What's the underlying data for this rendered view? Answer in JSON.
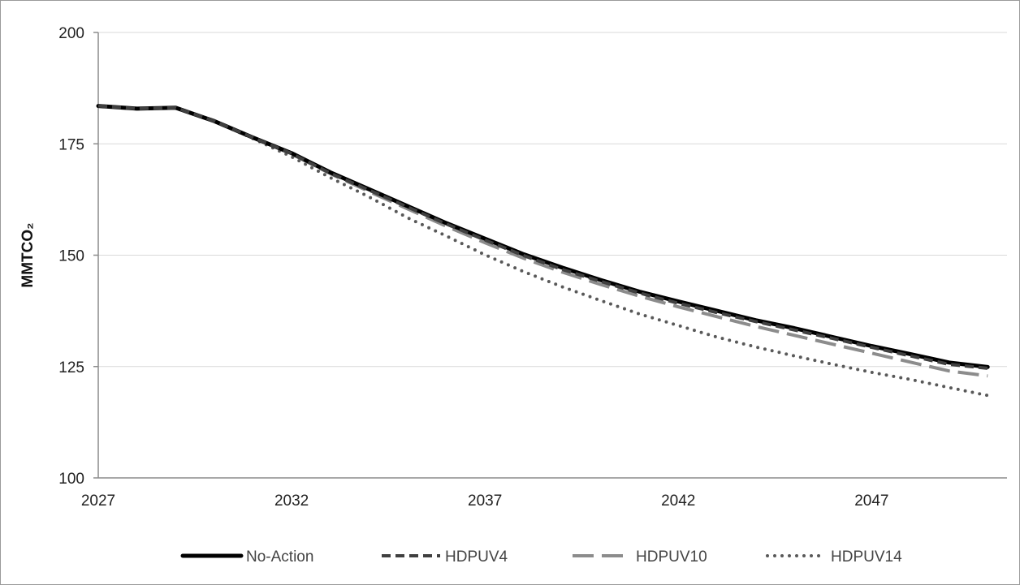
{
  "chart_data": {
    "type": "line",
    "title": "",
    "xlabel": "",
    "ylabel": "MMTCO₂",
    "x": [
      2027,
      2028,
      2029,
      2030,
      2031,
      2032,
      2033,
      2034,
      2035,
      2036,
      2037,
      2038,
      2039,
      2040,
      2041,
      2042,
      2043,
      2044,
      2045,
      2046,
      2047,
      2048,
      2049,
      2050
    ],
    "xlim": [
      2027,
      2050.5
    ],
    "x_ticks": [
      "2027",
      "2032",
      "2037",
      "2042",
      "2047"
    ],
    "ylim": [
      100,
      200
    ],
    "y_ticks": [
      "100",
      "125",
      "150",
      "175",
      "200"
    ],
    "grid": "horizontal",
    "legend_position": "bottom",
    "series": [
      {
        "name": "No-Action",
        "color": "#000000",
        "style": "solid",
        "values": [
          183.5,
          182.9,
          183.1,
          180.1,
          176.4,
          172.9,
          168.6,
          164.8,
          161.0,
          157.2,
          153.7,
          150.2,
          147.2,
          144.4,
          141.8,
          139.6,
          137.5,
          135.4,
          133.6,
          131.6,
          129.6,
          127.8,
          125.9,
          124.9
        ]
      },
      {
        "name": "HDPUV4",
        "color": "#404040",
        "style": "dashed",
        "values": [
          183.5,
          182.9,
          183.1,
          180.1,
          176.4,
          172.8,
          168.4,
          164.6,
          160.8,
          157.0,
          153.4,
          149.9,
          146.8,
          144.1,
          141.5,
          139.2,
          137.1,
          135.1,
          133.2,
          131.3,
          129.3,
          127.4,
          125.5,
          124.6
        ]
      },
      {
        "name": "HDPUV10",
        "color": "#8c8c8c",
        "style": "longdash",
        "values": [
          183.5,
          182.9,
          183.1,
          180.1,
          176.4,
          172.7,
          168.3,
          164.3,
          160.4,
          156.5,
          152.8,
          149.3,
          146.2,
          143.4,
          140.8,
          138.4,
          136.2,
          134.0,
          132.0,
          130.0,
          128.0,
          126.0,
          124.0,
          122.9
        ]
      },
      {
        "name": "HDPUV14",
        "color": "#595959",
        "style": "dotted",
        "values": [
          183.5,
          182.9,
          183.1,
          180.1,
          176.2,
          172.1,
          167.4,
          163.1,
          158.4,
          154.3,
          150.1,
          146.3,
          142.9,
          139.8,
          136.8,
          134.2,
          131.6,
          129.4,
          127.4,
          125.5,
          123.7,
          122.1,
          120.3,
          118.5
        ]
      }
    ]
  }
}
